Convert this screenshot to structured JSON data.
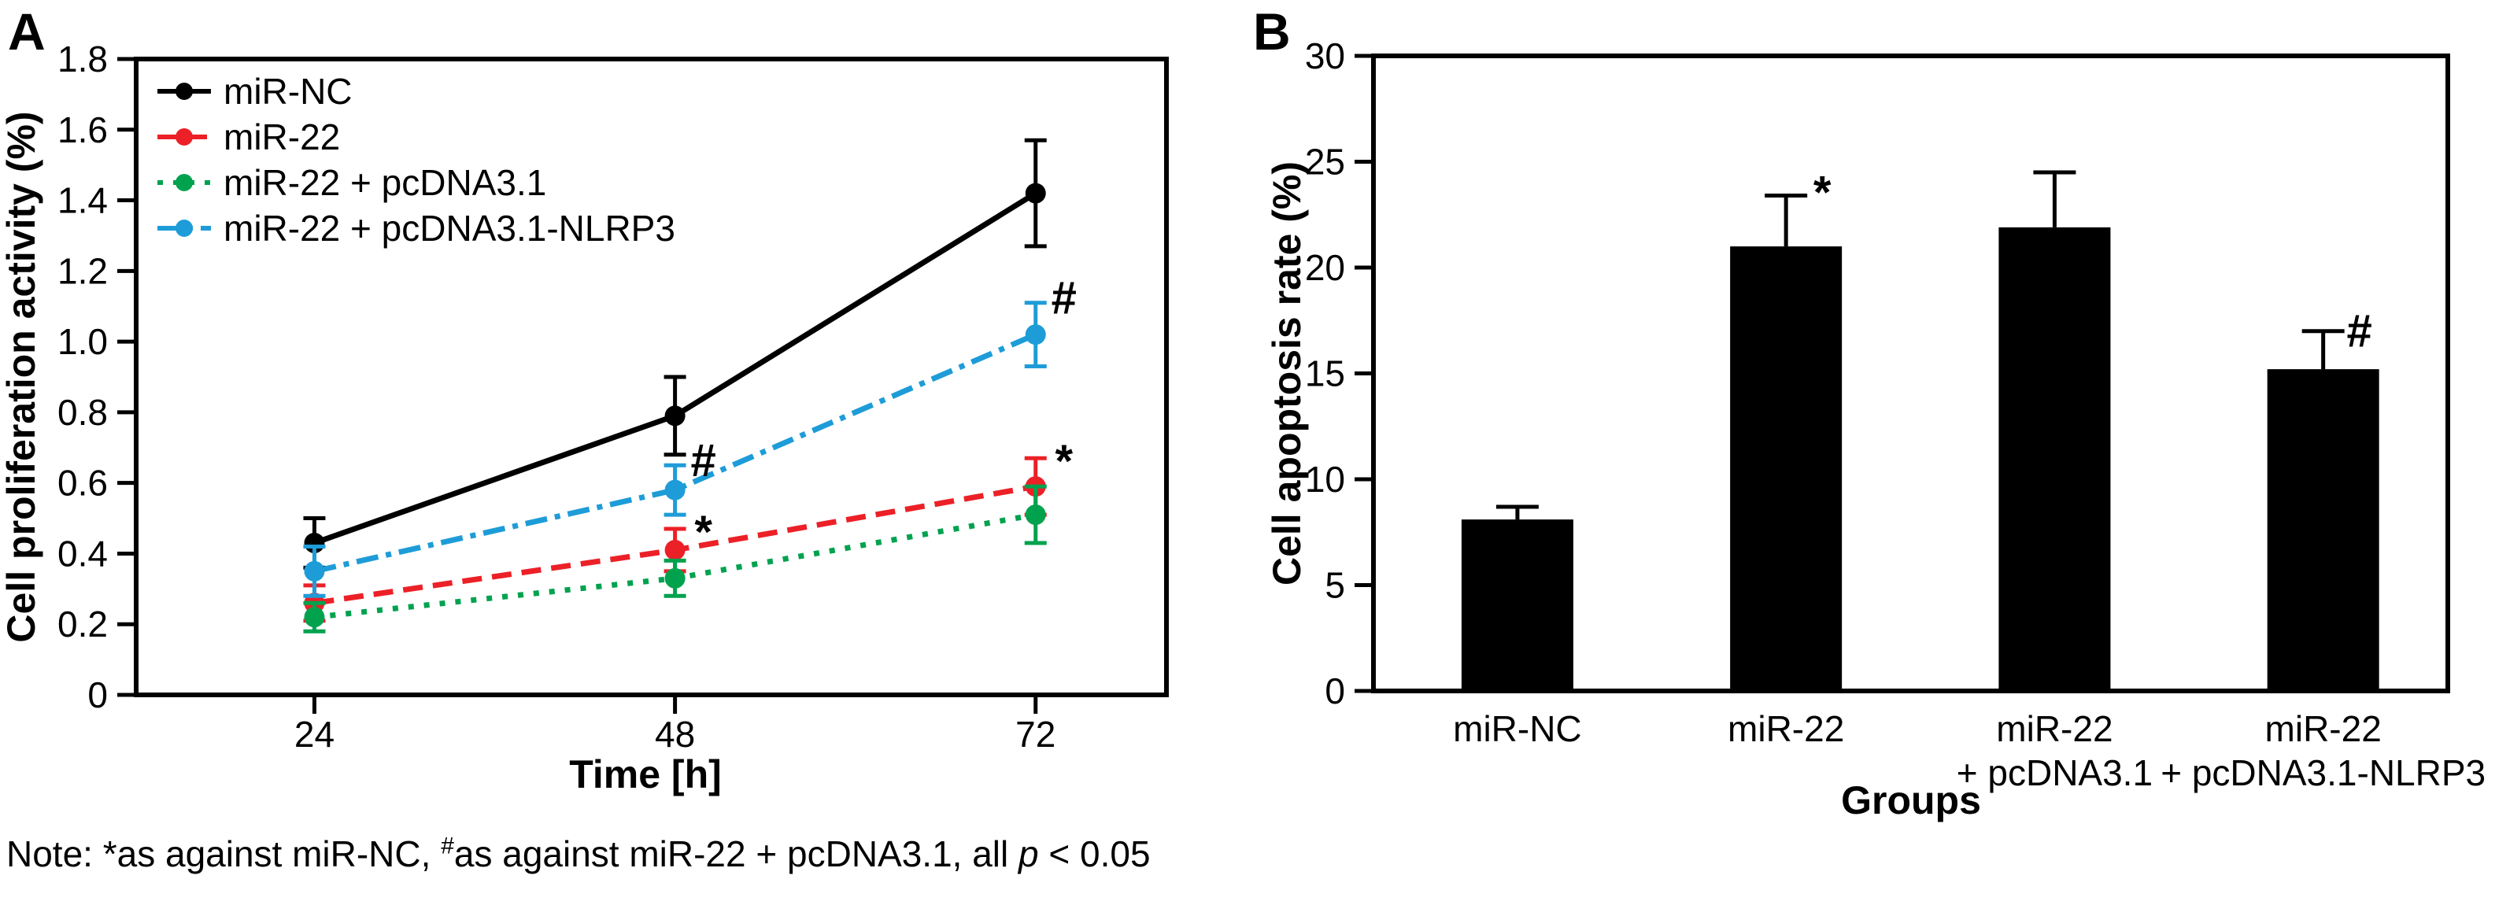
{
  "panels": {
    "a_label": "A",
    "b_label": "B"
  },
  "note": {
    "prefix": "Note: *as against miR-NC, ",
    "sup": "#",
    "middle": "as against miR-22 + pcDNA3.1, all ",
    "italic": "p",
    "suffix": " < 0.05"
  },
  "chart_data": [
    {
      "panel": "A",
      "type": "line",
      "xlabel": "Time [h]",
      "ylabel": "Cell proliferation activity (%)",
      "x": [
        24,
        48,
        72
      ],
      "ylim": [
        0,
        1.8
      ],
      "yticks": [
        "0",
        "0.2",
        "0.4",
        "0.6",
        "0.8",
        "1.0",
        "1.2",
        "1.4",
        "1.6",
        "1.8"
      ],
      "legend_position": "top-left",
      "grid": false,
      "series": [
        {
          "name": "miR-NC",
          "color": "#000000",
          "linestyle": "solid",
          "values": [
            0.43,
            0.79,
            1.42
          ],
          "errors": [
            0.07,
            0.11,
            0.15
          ],
          "point_labels": [
            "",
            "",
            ""
          ]
        },
        {
          "name": "miR-22",
          "color": "#EC2027",
          "linestyle": "dashed",
          "values": [
            0.26,
            0.41,
            0.59
          ],
          "errors": [
            0.05,
            0.06,
            0.08
          ],
          "point_labels": [
            "",
            "*",
            "*"
          ]
        },
        {
          "name": "miR-22 + pcDNA3.1",
          "color": "#00A24E",
          "linestyle": "dotted",
          "values": [
            0.22,
            0.33,
            0.51
          ],
          "errors": [
            0.04,
            0.05,
            0.08
          ],
          "point_labels": [
            "",
            "",
            ""
          ]
        },
        {
          "name": "miR-22 + pcDNA3.1-NLRP3",
          "color": "#1E9CD8",
          "linestyle": "dashdot",
          "values": [
            0.35,
            0.58,
            1.02
          ],
          "errors": [
            0.07,
            0.07,
            0.09
          ],
          "point_labels": [
            "",
            "#",
            "#"
          ]
        }
      ]
    },
    {
      "panel": "B",
      "type": "bar",
      "xlabel": "Groups",
      "ylabel": "Cell apoptosis rate (%)",
      "ylim": [
        0,
        30
      ],
      "yticks": [
        "0",
        "5",
        "10",
        "15",
        "20",
        "25",
        "30"
      ],
      "bar_color": "#000000",
      "grid": false,
      "categories": [
        [
          "miR-NC"
        ],
        [
          "miR-22"
        ],
        [
          "miR-22",
          "+ pcDNA3.1"
        ],
        [
          "miR-22",
          "+ pcDNA3.1-NLRP3"
        ]
      ],
      "values": [
        8.1,
        21.0,
        21.9,
        15.2
      ],
      "errors": [
        0.6,
        2.4,
        2.6,
        1.8
      ],
      "bar_labels": [
        "",
        "*",
        "",
        "#"
      ]
    }
  ]
}
